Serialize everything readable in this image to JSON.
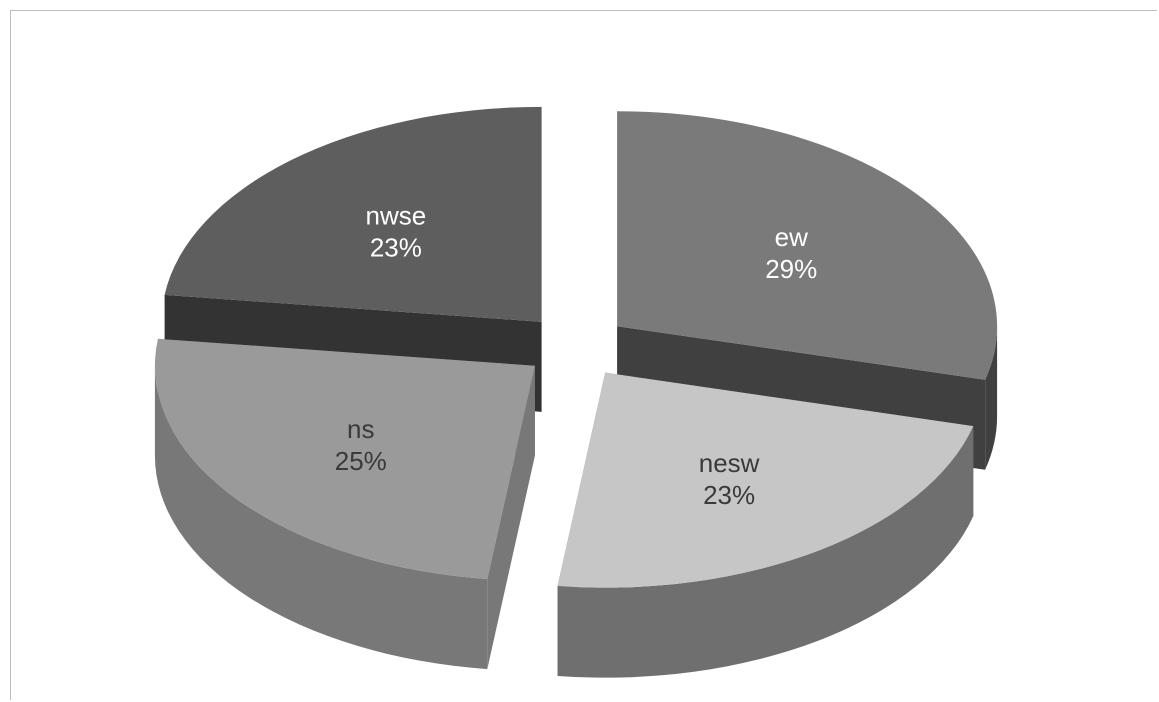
{
  "chart_data": {
    "type": "pie",
    "style": "3d-exploded",
    "title": "",
    "legend": "none",
    "slices": [
      {
        "label": "ew",
        "percent": "29%",
        "value": 29,
        "top_color": "#7a7a7a",
        "side_color": "#404040",
        "label_color": "#ffffff"
      },
      {
        "label": "nesw",
        "percent": "23%",
        "value": 23,
        "top_color": "#c6c6c6",
        "side_color": "#6f6f6f",
        "label_color": "#3a3a3a"
      },
      {
        "label": "ns",
        "percent": "25%",
        "value": 25,
        "top_color": "#9a9a9a",
        "side_color": "#787878",
        "label_color": "#3a3a3a"
      },
      {
        "label": "nwse",
        "percent": "23%",
        "value": 23,
        "top_color": "#5e5e5e",
        "side_color": "#333333",
        "label_color": "#ffffff"
      }
    ]
  }
}
